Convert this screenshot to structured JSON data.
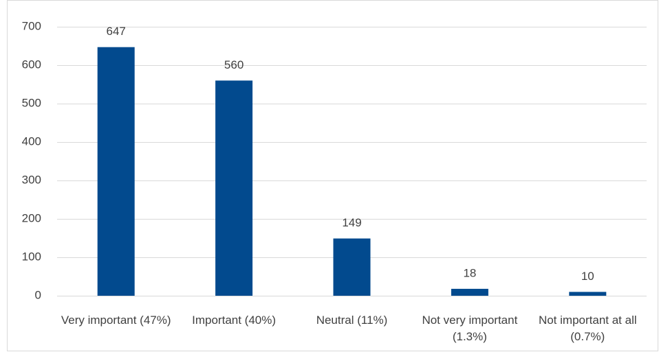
{
  "chart_data": {
    "type": "bar",
    "categories": [
      "Very important (47%)",
      "Important (40%)",
      "Neutral (11%)",
      "Not very important (1.3%)",
      "Not important at all (0.7%)"
    ],
    "values": [
      647,
      560,
      149,
      18,
      10
    ],
    "color": "#024a8e",
    "ylim": [
      0,
      700
    ],
    "yticks": [
      0,
      100,
      200,
      300,
      400,
      500,
      600,
      700
    ],
    "grid": true
  }
}
